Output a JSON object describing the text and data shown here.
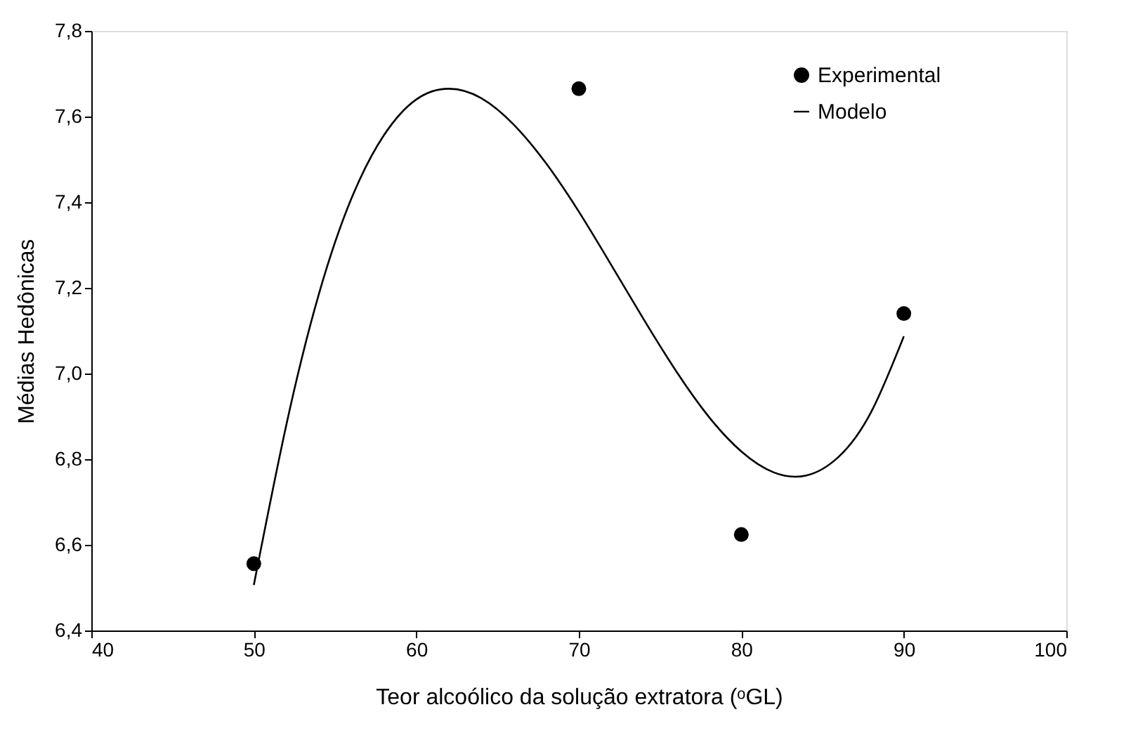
{
  "chart_data": {
    "type": "scatter",
    "xlabel": "Teor alcoólico da solução extratora (ᵒGL)",
    "ylabel": "Médias Hedônicas",
    "xlim": [
      40,
      100
    ],
    "xticks": [
      40,
      50,
      60,
      70,
      80,
      90,
      100
    ],
    "ylim": [
      6.4,
      7.8
    ],
    "yticks": [
      {
        "value": 6.4,
        "label": "6,4"
      },
      {
        "value": 6.6,
        "label": "6,6"
      },
      {
        "value": 6.8,
        "label": "6,8"
      },
      {
        "value": 7.0,
        "label": "7,0"
      },
      {
        "value": 7.2,
        "label": "7,2"
      },
      {
        "value": 7.4,
        "label": "7,4"
      },
      {
        "value": 7.6,
        "label": "7,6"
      },
      {
        "value": 7.8,
        "label": "7,8"
      }
    ],
    "grid": false,
    "legend": "top right",
    "series": [
      {
        "name": "Experimental",
        "marker": "circle",
        "color": "#000000",
        "x": [
          50,
          70,
          80,
          90
        ],
        "values": [
          6.556,
          7.665,
          6.624,
          7.14
        ]
      },
      {
        "name": "Modelo",
        "type": "line",
        "marker": "none",
        "line_style": "solid",
        "color": "#000000",
        "x": [
          50,
          52,
          54,
          56,
          58,
          60,
          62,
          64,
          66,
          68,
          70,
          72,
          74,
          76,
          78,
          80,
          82,
          84,
          86,
          88,
          90
        ],
        "values": [
          6.506,
          6.88,
          7.185,
          7.408,
          7.556,
          7.64,
          7.665,
          7.643,
          7.581,
          7.49,
          7.378,
          7.253,
          7.126,
          7.005,
          6.899,
          6.818,
          6.769,
          6.762,
          6.806,
          6.911,
          7.087
        ]
      }
    ]
  }
}
